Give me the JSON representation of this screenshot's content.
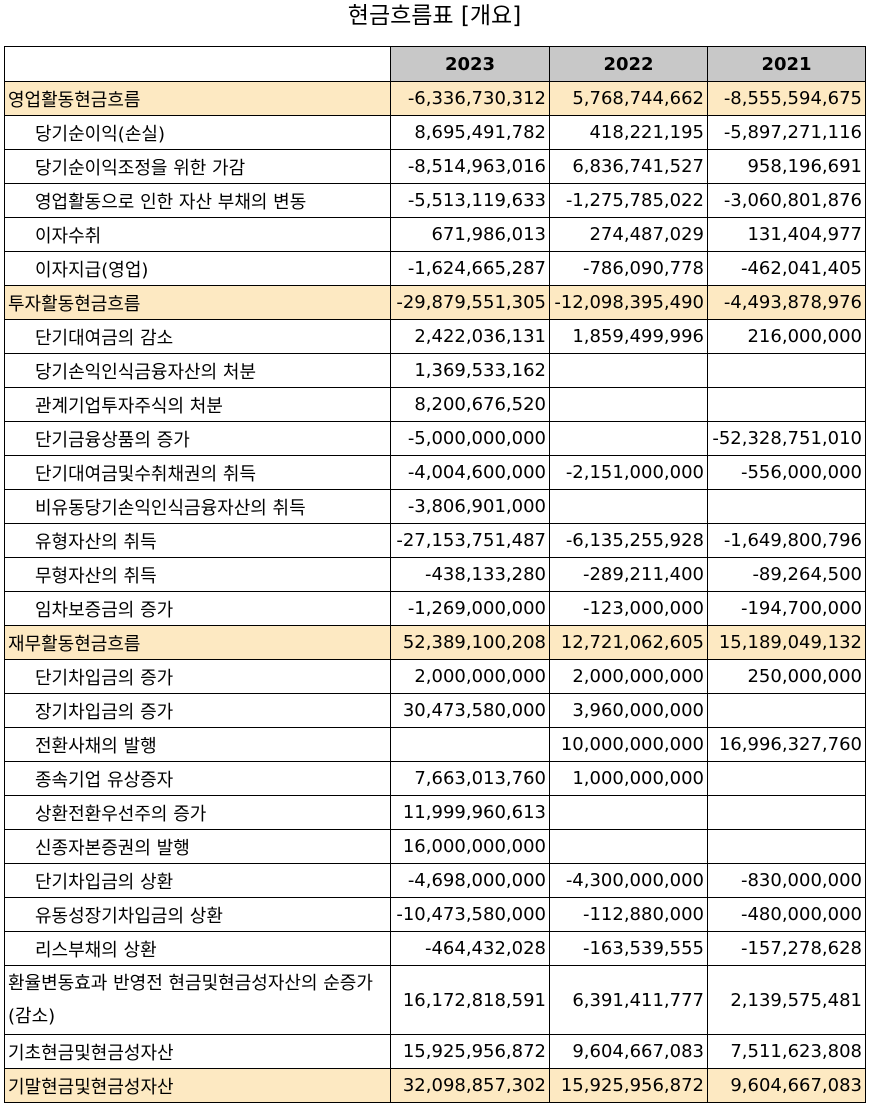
{
  "title": "현금흐름표 [개요]",
  "columns": [
    "",
    "2023",
    "2022",
    "2021"
  ],
  "rows": [
    {
      "label": "영업활동현금흐름",
      "type": "section",
      "values": [
        "-6,336,730,312",
        "5,768,744,662",
        "-8,555,594,675"
      ]
    },
    {
      "label": "당기순이익(손실)",
      "type": "sub",
      "values": [
        "8,695,491,782",
        "418,221,195",
        "-5,897,271,116"
      ]
    },
    {
      "label": "당기순이익조정을 위한 가감",
      "type": "sub",
      "values": [
        "-8,514,963,016",
        "6,836,741,527",
        "958,196,691"
      ]
    },
    {
      "label": "영업활동으로 인한 자산 부채의 변동",
      "type": "sub",
      "values": [
        "-5,513,119,633",
        "-1,275,785,022",
        "-3,060,801,876"
      ]
    },
    {
      "label": "이자수취",
      "type": "sub",
      "values": [
        "671,986,013",
        "274,487,029",
        "131,404,977"
      ]
    },
    {
      "label": "이자지급(영업)",
      "type": "sub",
      "values": [
        "-1,624,665,287",
        "-786,090,778",
        "-462,041,405"
      ]
    },
    {
      "label": "투자활동현금흐름",
      "type": "section",
      "values": [
        "-29,879,551,305",
        "-12,098,395,490",
        "-4,493,878,976"
      ]
    },
    {
      "label": "단기대여금의 감소",
      "type": "sub",
      "values": [
        "2,422,036,131",
        "1,859,499,996",
        "216,000,000"
      ]
    },
    {
      "label": "당기손익인식금융자산의 처분",
      "type": "sub",
      "values": [
        "1,369,533,162",
        "",
        ""
      ]
    },
    {
      "label": "관계기업투자주식의 처분",
      "type": "sub",
      "values": [
        "8,200,676,520",
        "",
        ""
      ]
    },
    {
      "label": "단기금융상품의 증가",
      "type": "sub",
      "values": [
        "-5,000,000,000",
        "",
        "-52,328,751,010"
      ]
    },
    {
      "label": "단기대여금및수취채권의 취득",
      "type": "sub",
      "values": [
        "-4,004,600,000",
        "-2,151,000,000",
        "-556,000,000"
      ]
    },
    {
      "label": "비유동당기손익인식금융자산의 취득",
      "type": "sub",
      "values": [
        "-3,806,901,000",
        "",
        ""
      ]
    },
    {
      "label": "유형자산의 취득",
      "type": "sub",
      "values": [
        "-27,153,751,487",
        "-6,135,255,928",
        "-1,649,800,796"
      ]
    },
    {
      "label": "무형자산의 취득",
      "type": "sub",
      "values": [
        "-438,133,280",
        "-289,211,400",
        "-89,264,500"
      ]
    },
    {
      "label": "임차보증금의 증가",
      "type": "sub",
      "values": [
        "-1,269,000,000",
        "-123,000,000",
        "-194,700,000"
      ]
    },
    {
      "label": "재무활동현금흐름",
      "type": "section",
      "values": [
        "52,389,100,208",
        "12,721,062,605",
        "15,189,049,132"
      ]
    },
    {
      "label": "단기차입금의 증가",
      "type": "sub",
      "values": [
        "2,000,000,000",
        "2,000,000,000",
        "250,000,000"
      ]
    },
    {
      "label": "장기차입금의 증가",
      "type": "sub",
      "values": [
        "30,473,580,000",
        "3,960,000,000",
        ""
      ]
    },
    {
      "label": "전환사채의 발행",
      "type": "sub",
      "values": [
        "",
        "10,000,000,000",
        "16,996,327,760"
      ]
    },
    {
      "label": "종속기업 유상증자",
      "type": "sub",
      "values": [
        "7,663,013,760",
        "1,000,000,000",
        ""
      ]
    },
    {
      "label": "상환전환우선주의 증가",
      "type": "sub",
      "values": [
        "11,999,960,613",
        "",
        ""
      ]
    },
    {
      "label": "신종자본증권의 발행",
      "type": "sub",
      "values": [
        "16,000,000,000",
        "",
        ""
      ]
    },
    {
      "label": "단기차입금의 상환",
      "type": "sub",
      "values": [
        "-4,698,000,000",
        "-4,300,000,000",
        "-830,000,000"
      ]
    },
    {
      "label": "유동성장기차입금의 상환",
      "type": "sub",
      "values": [
        "-10,473,580,000",
        "-112,880,000",
        "-480,000,000"
      ]
    },
    {
      "label": "리스부채의 상환",
      "type": "sub",
      "values": [
        "-464,432,028",
        "-163,539,555",
        "-157,278,628"
      ]
    },
    {
      "label": "환율변동효과 반영전 현금및현금성자산의 순증가(감소)",
      "type": "tall",
      "values": [
        "16,172,818,591",
        "6,391,411,777",
        "2,139,575,481"
      ]
    },
    {
      "label": "기초현금및현금성자산",
      "type": "plain",
      "values": [
        "15,925,956,872",
        "9,604,667,083",
        "7,511,623,808"
      ]
    },
    {
      "label": "기말현금및현금성자산",
      "type": "section",
      "values": [
        "32,098,857,302",
        "15,925,956,872",
        "9,604,667,083"
      ]
    }
  ]
}
